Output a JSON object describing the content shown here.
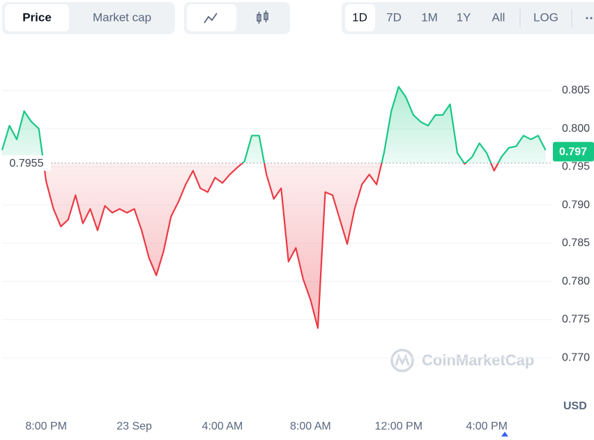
{
  "toolbar": {
    "view_tabs": [
      "Price",
      "Market cap"
    ],
    "ranges": [
      "1D",
      "7D",
      "1M",
      "1Y",
      "All"
    ],
    "scale": "LOG"
  },
  "chart_data": {
    "type": "line",
    "categories": [
      null,
      null,
      null,
      null,
      null,
      null,
      "8:00 PM",
      null,
      null,
      null,
      null,
      null,
      null,
      null,
      null,
      null,
      null,
      null,
      "23 Sep",
      null,
      null,
      null,
      null,
      null,
      null,
      null,
      null,
      null,
      null,
      null,
      "4:00 AM",
      null,
      null,
      null,
      null,
      null,
      null,
      null,
      null,
      null,
      null,
      null,
      "8:00 AM",
      null,
      null,
      null,
      null,
      null,
      null,
      null,
      null,
      null,
      null,
      null,
      "12:00 PM",
      null,
      null,
      null,
      null,
      null,
      null,
      null,
      null,
      null,
      null,
      null,
      "4:00 PM",
      null,
      null,
      null,
      null,
      null,
      null,
      null,
      null
    ],
    "values": [
      0.7972,
      0.8004,
      0.7986,
      0.8023,
      0.8009,
      0.8,
      0.7931,
      0.7895,
      0.7872,
      0.7881,
      0.7913,
      0.7876,
      0.7895,
      0.7867,
      0.7899,
      0.789,
      0.7895,
      0.789,
      0.7895,
      0.7867,
      0.7831,
      0.7808,
      0.784,
      0.7885,
      0.7904,
      0.7927,
      0.7945,
      0.7922,
      0.7917,
      0.7936,
      0.7929,
      0.794,
      0.7949,
      0.7957,
      0.7991,
      0.7991,
      0.794,
      0.7908,
      0.7922,
      0.7826,
      0.7844,
      0.7803,
      0.7776,
      0.7739,
      0.7917,
      0.7913,
      0.7881,
      0.7849,
      0.7895,
      0.7927,
      0.794,
      0.7927,
      0.7968,
      0.8023,
      0.8055,
      0.8041,
      0.8018,
      0.8009,
      0.8004,
      0.8018,
      0.8018,
      0.8032,
      0.7968,
      0.7954,
      0.7963,
      0.7981,
      0.7968,
      0.7945,
      0.7963,
      0.7975,
      0.7977,
      0.7991,
      0.7986,
      0.7991,
      0.7972
    ],
    "baseline": 0.7955,
    "last_price": 0.797,
    "color_up": "#16c784",
    "color_down": "#ea3943",
    "ylim": [
      0.763,
      0.81
    ],
    "yticks": [
      {
        "value": 0.77,
        "label": "0.770"
      },
      0.775,
      {
        "value": 0.78,
        "label": "0.780"
      },
      0.785,
      {
        "value": 0.79,
        "label": "0.790"
      },
      0.795,
      {
        "value": 0.8,
        "label": "0.800"
      },
      0.805
    ],
    "grid": true,
    "currency_label": "USD",
    "watermark": "CoinMarketCap"
  }
}
